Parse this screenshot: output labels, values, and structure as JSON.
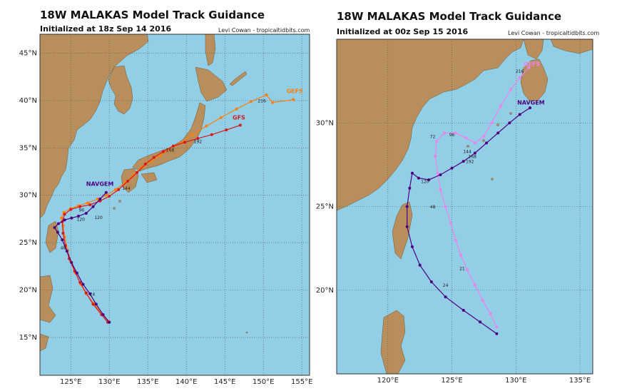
{
  "left_panel": {
    "title": "18W MALAKAS Model Track Guidance",
    "subtitle": "Initialized at 18z Sep 14 2016",
    "credit": "Levi Cowan - tropicaltidbits.com",
    "x_ticks": [
      "125°E",
      "130°E",
      "135°E",
      "140°E",
      "145°E",
      "150°E",
      "155°E"
    ],
    "y_ticks": [
      "15°N",
      "20°N",
      "25°N",
      "30°N",
      "35°N",
      "40°N",
      "45°N"
    ],
    "lon_range": [
      121,
      156
    ],
    "lat_range": [
      11,
      47
    ],
    "models": [
      {
        "name": "GEFS",
        "color": "#ff7f0e",
        "lonlat": [
          [
            129.9,
            16.7
          ],
          [
            129.0,
            17.5
          ],
          [
            128.0,
            18.6
          ],
          [
            127.0,
            19.6
          ],
          [
            126.3,
            20.6
          ],
          [
            125.6,
            21.8
          ],
          [
            125.0,
            23.0
          ],
          [
            124.6,
            24.2
          ],
          [
            124.2,
            25.6
          ],
          [
            124.0,
            26.8
          ],
          [
            123.8,
            27.6
          ],
          [
            124.1,
            28.2
          ],
          [
            125.0,
            28.6
          ],
          [
            126.0,
            28.9
          ],
          [
            127.2,
            29.2
          ],
          [
            128.5,
            29.6
          ],
          [
            129.6,
            30.0
          ],
          [
            130.8,
            30.6
          ],
          [
            132.0,
            31.3
          ],
          [
            133.2,
            32.2
          ],
          [
            134.3,
            33.0
          ],
          [
            135.4,
            33.6
          ],
          [
            136.6,
            34.2
          ],
          [
            137.8,
            34.9
          ],
          [
            139.2,
            35.5
          ],
          [
            140.8,
            36.4
          ],
          [
            142.6,
            37.3
          ],
          [
            144.5,
            38.2
          ],
          [
            146.5,
            39.1
          ],
          [
            148.4,
            39.9
          ],
          [
            150.4,
            40.6
          ],
          [
            151.2,
            39.8
          ],
          [
            153.9,
            40.1
          ]
        ],
        "labels": [
          {
            "t": "216",
            "lon": 149.8,
            "lat": 39.8
          },
          {
            "t": "GEFS",
            "lon": 153.0,
            "lat": 40.8
          }
        ]
      },
      {
        "name": "GFS",
        "color": "#d7191c",
        "lonlat": [
          [
            129.8,
            16.6
          ],
          [
            129.0,
            17.4
          ],
          [
            127.9,
            18.5
          ],
          [
            127.0,
            19.7
          ],
          [
            126.2,
            20.8
          ],
          [
            125.5,
            22.0
          ],
          [
            124.8,
            23.3
          ],
          [
            124.3,
            24.7
          ],
          [
            124.0,
            26.0
          ],
          [
            123.9,
            27.2
          ],
          [
            124.2,
            28.0
          ],
          [
            125.0,
            28.5
          ],
          [
            126.2,
            28.8
          ],
          [
            127.5,
            29.0
          ],
          [
            128.8,
            29.4
          ],
          [
            130.0,
            29.9
          ],
          [
            131.2,
            30.6
          ],
          [
            132.4,
            31.5
          ],
          [
            133.6,
            32.4
          ],
          [
            134.7,
            33.3
          ],
          [
            135.8,
            34.0
          ],
          [
            137.0,
            34.6
          ],
          [
            138.3,
            35.2
          ],
          [
            139.8,
            35.6
          ],
          [
            141.5,
            36.0
          ],
          [
            143.3,
            36.4
          ],
          [
            145.2,
            36.9
          ],
          [
            147.0,
            37.4
          ]
        ],
        "labels": [
          {
            "t": "192",
            "lon": 141.5,
            "lat": 35.5
          },
          {
            "t": "GFS",
            "lon": 146.0,
            "lat": 38.0
          }
        ]
      },
      {
        "name": "NAVGEM",
        "color": "#4b0082",
        "lonlat": [
          [
            130.0,
            16.6
          ],
          [
            129.2,
            17.4
          ],
          [
            128.3,
            18.5
          ],
          [
            127.5,
            19.6
          ],
          [
            126.6,
            20.6
          ],
          [
            125.8,
            21.8
          ],
          [
            125.1,
            22.9
          ],
          [
            124.5,
            24.1
          ],
          [
            123.9,
            25.3
          ],
          [
            123.3,
            26.1
          ],
          [
            122.9,
            26.6
          ],
          [
            123.4,
            27.0
          ],
          [
            124.2,
            27.4
          ],
          [
            125.1,
            27.6
          ],
          [
            126.0,
            27.8
          ],
          [
            127.0,
            28.1
          ],
          [
            127.9,
            28.8
          ],
          [
            128.8,
            29.6
          ],
          [
            129.6,
            30.3
          ]
        ],
        "labels": [
          {
            "t": "NAVGEM",
            "lon": 127.0,
            "lat": 31.0
          }
        ]
      }
    ],
    "hour_labels": [
      {
        "t": "24",
        "lon": 127.8,
        "lat": 19.4
      },
      {
        "t": "48",
        "lon": 124.0,
        "lat": 24.3
      },
      {
        "t": "96",
        "lon": 126.4,
        "lat": 28.3
      },
      {
        "t": "120",
        "lon": 128.6,
        "lat": 27.5
      },
      {
        "t": "120",
        "lon": 126.3,
        "lat": 27.3
      },
      {
        "t": "144",
        "lon": 132.2,
        "lat": 30.6
      },
      {
        "t": "168",
        "lon": 137.9,
        "lat": 34.6
      }
    ]
  },
  "right_panel": {
    "title": "18W MALAKAS Model Track Guidance",
    "subtitle": "Initialized at 00z Sep 15 2016",
    "credit": "Levi Cowan - tropicaltidbits.com",
    "x_ticks": [
      "120°E",
      "125°E",
      "130°E",
      "135°E"
    ],
    "y_ticks": [
      "20°N",
      "25°N",
      "30°N"
    ],
    "lon_range": [
      116,
      136
    ],
    "lat_range": [
      15,
      35
    ],
    "models": [
      {
        "name": "GEFS",
        "color": "#ee82ee",
        "lonlat": [
          [
            128.5,
            17.8
          ],
          [
            128.0,
            18.6
          ],
          [
            127.4,
            19.4
          ],
          [
            126.8,
            20.3
          ],
          [
            126.2,
            21.2
          ],
          [
            125.7,
            22.1
          ],
          [
            125.3,
            23.0
          ],
          [
            124.9,
            24.0
          ],
          [
            124.5,
            25.0
          ],
          [
            124.1,
            26.0
          ],
          [
            123.9,
            27.0
          ],
          [
            123.7,
            28.0
          ],
          [
            123.8,
            28.9
          ],
          [
            124.4,
            29.4
          ],
          [
            125.3,
            29.4
          ],
          [
            126.1,
            29.1
          ],
          [
            126.8,
            28.8
          ],
          [
            127.5,
            29.2
          ],
          [
            128.1,
            30.0
          ],
          [
            128.8,
            31.0
          ],
          [
            129.6,
            32.0
          ],
          [
            130.3,
            32.7
          ],
          [
            131.0,
            33.3
          ]
        ],
        "labels": [
          {
            "t": "GEFS",
            "lon": 130.6,
            "lat": 33.4
          }
        ]
      },
      {
        "name": "NAVGEM",
        "color": "#4b0082",
        "lonlat": [
          [
            128.5,
            17.4
          ],
          [
            127.2,
            18.1
          ],
          [
            125.9,
            18.8
          ],
          [
            124.5,
            19.6
          ],
          [
            123.4,
            20.5
          ],
          [
            122.5,
            21.5
          ],
          [
            121.9,
            22.6
          ],
          [
            121.5,
            23.8
          ],
          [
            121.5,
            25.0
          ],
          [
            121.7,
            26.1
          ],
          [
            121.9,
            27.0
          ],
          [
            122.4,
            26.7
          ],
          [
            123.2,
            26.6
          ],
          [
            124.1,
            26.9
          ],
          [
            125.0,
            27.3
          ],
          [
            125.9,
            27.7
          ],
          [
            126.8,
            28.2
          ],
          [
            127.7,
            28.8
          ],
          [
            128.6,
            29.4
          ],
          [
            129.5,
            30.0
          ],
          [
            130.3,
            30.5
          ],
          [
            131.1,
            30.9
          ]
        ],
        "labels": [
          {
            "t": "NAVGEM",
            "lon": 130.1,
            "lat": 31.1
          }
        ]
      }
    ],
    "hour_labels": [
      {
        "t": "24",
        "lon": 124.5,
        "lat": 20.2
      },
      {
        "t": "48",
        "lon": 123.5,
        "lat": 24.9
      },
      {
        "t": "72",
        "lon": 123.5,
        "lat": 29.1
      },
      {
        "t": "96",
        "lon": 125.0,
        "lat": 29.2
      },
      {
        "t": "120",
        "lon": 122.9,
        "lat": 26.4
      },
      {
        "t": "144",
        "lon": 126.2,
        "lat": 28.2
      },
      {
        "t": "168",
        "lon": 126.6,
        "lat": 27.9
      },
      {
        "t": "192",
        "lon": 126.4,
        "lat": 27.6
      },
      {
        "t": "21",
        "lon": 125.8,
        "lat": 21.2
      },
      {
        "t": "216",
        "lon": 130.3,
        "lat": 33.0
      }
    ]
  },
  "colors": {
    "ocean": "#92cee6",
    "land": "#b88f5c",
    "grid": "#555555"
  }
}
